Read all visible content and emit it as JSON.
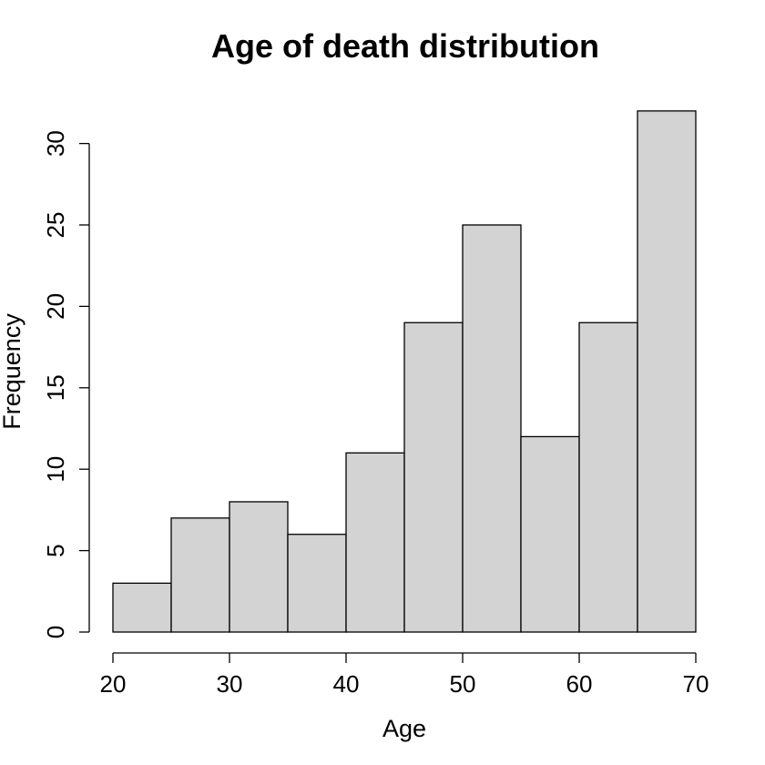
{
  "chart_data": {
    "type": "bar",
    "title": "Age of death distribution",
    "xlabel": "Age",
    "ylabel": "Frequency",
    "bin_edges": [
      20,
      25,
      30,
      35,
      40,
      45,
      50,
      55,
      60,
      65,
      70
    ],
    "values": [
      3,
      7,
      8,
      6,
      11,
      19,
      25,
      12,
      19,
      32
    ],
    "xlim": [
      20,
      70
    ],
    "ylim": [
      0,
      32
    ],
    "x_ticks": [
      20,
      30,
      40,
      50,
      60,
      70
    ],
    "y_ticks": [
      0,
      5,
      10,
      15,
      20,
      25,
      30
    ],
    "bar_color": "#d3d3d3",
    "grid": false,
    "legend": "none"
  }
}
